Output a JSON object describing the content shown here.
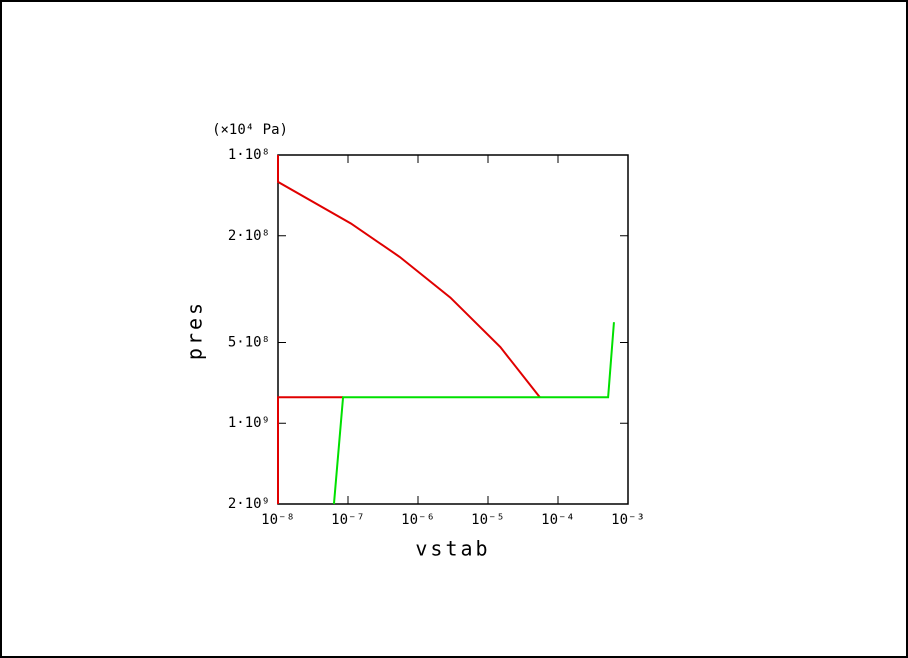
{
  "chart_data": {
    "type": "line",
    "xlabel": "vstab",
    "ylabel": "pres",
    "yunit": "(×10⁴ Pa)",
    "xscale": "log",
    "yscale": "log",
    "yinverted": true,
    "xlim": [
      1e-08,
      0.001
    ],
    "xticks": [
      {
        "value": 1e-08,
        "label": "10⁻⁸"
      },
      {
        "value": 1e-07,
        "label": "10⁻⁷"
      },
      {
        "value": 1e-06,
        "label": "10⁻⁶"
      },
      {
        "value": 1e-05,
        "label": "10⁻⁵"
      },
      {
        "value": 0.0001,
        "label": "10⁻⁴"
      },
      {
        "value": 0.001,
        "label": "10⁻³"
      }
    ],
    "ylim": [
      100000000.0,
      2000000000.0
    ],
    "yticks": [
      {
        "value": 100000000.0,
        "label": "1·10⁸"
      },
      {
        "value": 200000000.0,
        "label": "2·10⁸"
      },
      {
        "value": 500000000.0,
        "label": "5·10⁸"
      },
      {
        "value": 1000000000.0,
        "label": "1·10⁹"
      },
      {
        "value": 2000000000.0,
        "label": "2·10⁹"
      }
    ],
    "series": [
      {
        "color": "#e00000",
        "x": [
          1e-08,
          1e-08,
          1.1e-07,
          5.5e-07,
          2.9e-06,
          1.5e-05,
          5.5e-05,
          null,
          8.5e-08,
          1e-08,
          1e-08
        ],
        "values": [
          100000000.0,
          126000000.0,
          180000000.0,
          240000000.0,
          340000000.0,
          520000000.0,
          800000000.0,
          null,
          800000000.0,
          800000000.0,
          2000000000.0
        ]
      },
      {
        "color": "#00e000",
        "x": [
          6.3e-08,
          8.5e-08,
          0.00052,
          0.00063
        ],
        "values": [
          2000000000.0,
          800000000.0,
          800000000.0,
          420000000.0
        ]
      }
    ]
  }
}
